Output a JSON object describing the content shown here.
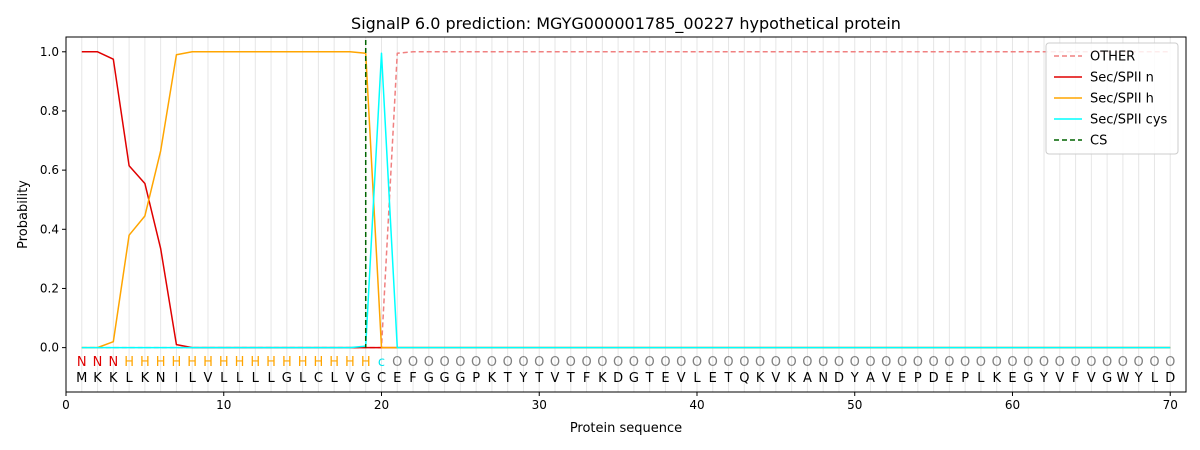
{
  "chart_data": {
    "type": "line",
    "title": "SignalP 6.0 prediction: MGYG000001785_00227 hypothetical protein",
    "xlabel": "Protein sequence",
    "ylabel": "Probability",
    "xlim": [
      0,
      71
    ],
    "ylim": [
      -0.15,
      1.05
    ],
    "xticks": [
      0,
      10,
      20,
      30,
      40,
      50,
      60,
      70
    ],
    "yticks": [
      0.0,
      0.2,
      0.4,
      0.6,
      0.8,
      1.0
    ],
    "xtick_labels": [
      "0",
      "10",
      "20",
      "30",
      "40",
      "50",
      "60",
      "70"
    ],
    "ytick_labels": [
      "0.0",
      "0.2",
      "0.4",
      "0.6",
      "0.8",
      "1.0"
    ],
    "legend_position": "top-right",
    "sequence": [
      "M",
      "K",
      "K",
      "L",
      "K",
      "N",
      "I",
      "L",
      "V",
      "L",
      "L",
      "L",
      "L",
      "G",
      "L",
      "C",
      "L",
      "V",
      "G",
      "C",
      "E",
      "F",
      "G",
      "G",
      "G",
      "P",
      "K",
      "T",
      "Y",
      "T",
      "V",
      "T",
      "F",
      "K",
      "D",
      "G",
      "T",
      "E",
      "V",
      "L",
      "E",
      "T",
      "Q",
      "K",
      "V",
      "K",
      "A",
      "N",
      "D",
      "Y",
      "A",
      "V",
      "E",
      "P",
      "D",
      "E",
      "P",
      "L",
      "K",
      "E",
      "G",
      "Y",
      "V",
      "F",
      "V",
      "G",
      "W",
      "Y",
      "L",
      "D"
    ],
    "labels": [
      "N",
      "N",
      "N",
      "H",
      "H",
      "H",
      "H",
      "H",
      "H",
      "H",
      "H",
      "H",
      "H",
      "H",
      "H",
      "H",
      "H",
      "H",
      "H",
      "c",
      "O",
      "O",
      "O",
      "O",
      "O",
      "O",
      "O",
      "O",
      "O",
      "O",
      "O",
      "O",
      "O",
      "O",
      "O",
      "O",
      "O",
      "O",
      "O",
      "O",
      "O",
      "O",
      "O",
      "O",
      "O",
      "O",
      "O",
      "O",
      "O",
      "O",
      "O",
      "O",
      "O",
      "O",
      "O",
      "O",
      "O",
      "O",
      "O",
      "O",
      "O",
      "O",
      "O",
      "O",
      "O",
      "O",
      "O",
      "O",
      "O",
      "O"
    ],
    "label_colors": {
      "N": "#e00000",
      "H": "#ffa500",
      "c": "#00e5ee",
      "O": "#808080"
    },
    "cs_position": 19,
    "cs_label": "CS",
    "series": [
      {
        "name": "OTHER",
        "color": "#f08080",
        "dash": "dashed",
        "values": [
          0,
          0,
          0,
          0,
          0,
          0,
          0,
          0,
          0,
          0,
          0,
          0,
          0,
          0,
          0,
          0,
          0,
          0,
          0,
          0,
          0.995,
          1,
          1,
          1,
          1,
          1,
          1,
          1,
          1,
          1,
          1,
          1,
          1,
          1,
          1,
          1,
          1,
          1,
          1,
          1,
          1,
          1,
          1,
          1,
          1,
          1,
          1,
          1,
          1,
          1,
          1,
          1,
          1,
          1,
          1,
          1,
          1,
          1,
          1,
          1,
          1,
          1,
          1,
          1,
          1,
          1,
          1,
          1,
          1,
          1
        ]
      },
      {
        "name": "Sec/SPII n",
        "color": "#e00000",
        "dash": "solid",
        "values": [
          1,
          1,
          0.975,
          0.615,
          0.555,
          0.335,
          0.01,
          0,
          0,
          0,
          0,
          0,
          0,
          0,
          0,
          0,
          0,
          0,
          0,
          0,
          0,
          0,
          0,
          0,
          0,
          0,
          0,
          0,
          0,
          0,
          0,
          0,
          0,
          0,
          0,
          0,
          0,
          0,
          0,
          0,
          0,
          0,
          0,
          0,
          0,
          0,
          0,
          0,
          0,
          0,
          0,
          0,
          0,
          0,
          0,
          0,
          0,
          0,
          0,
          0,
          0,
          0,
          0,
          0,
          0,
          0,
          0,
          0,
          0,
          0
        ]
      },
      {
        "name": "Sec/SPII h",
        "color": "#ffa500",
        "dash": "solid",
        "values": [
          0,
          0,
          0.02,
          0.38,
          0.445,
          0.665,
          0.99,
          1,
          1,
          1,
          1,
          1,
          1,
          1,
          1,
          1,
          1,
          1,
          0.995,
          0,
          0,
          0,
          0,
          0,
          0,
          0,
          0,
          0,
          0,
          0,
          0,
          0,
          0,
          0,
          0,
          0,
          0,
          0,
          0,
          0,
          0,
          0,
          0,
          0,
          0,
          0,
          0,
          0,
          0,
          0,
          0,
          0,
          0,
          0,
          0,
          0,
          0,
          0,
          0,
          0,
          0,
          0,
          0,
          0,
          0,
          0,
          0,
          0,
          0,
          0
        ]
      },
      {
        "name": "Sec/SPII cys",
        "color": "#00ffff",
        "dash": "solid",
        "values": [
          0,
          0,
          0,
          0,
          0,
          0,
          0,
          0,
          0,
          0,
          0,
          0,
          0,
          0,
          0,
          0,
          0,
          0,
          0.005,
          0.995,
          0,
          0,
          0,
          0,
          0,
          0,
          0,
          0,
          0,
          0,
          0,
          0,
          0,
          0,
          0,
          0,
          0,
          0,
          0,
          0,
          0,
          0,
          0,
          0,
          0,
          0,
          0,
          0,
          0,
          0,
          0,
          0,
          0,
          0,
          0,
          0,
          0,
          0,
          0,
          0,
          0,
          0,
          0,
          0,
          0,
          0,
          0,
          0,
          0,
          0
        ]
      }
    ]
  }
}
